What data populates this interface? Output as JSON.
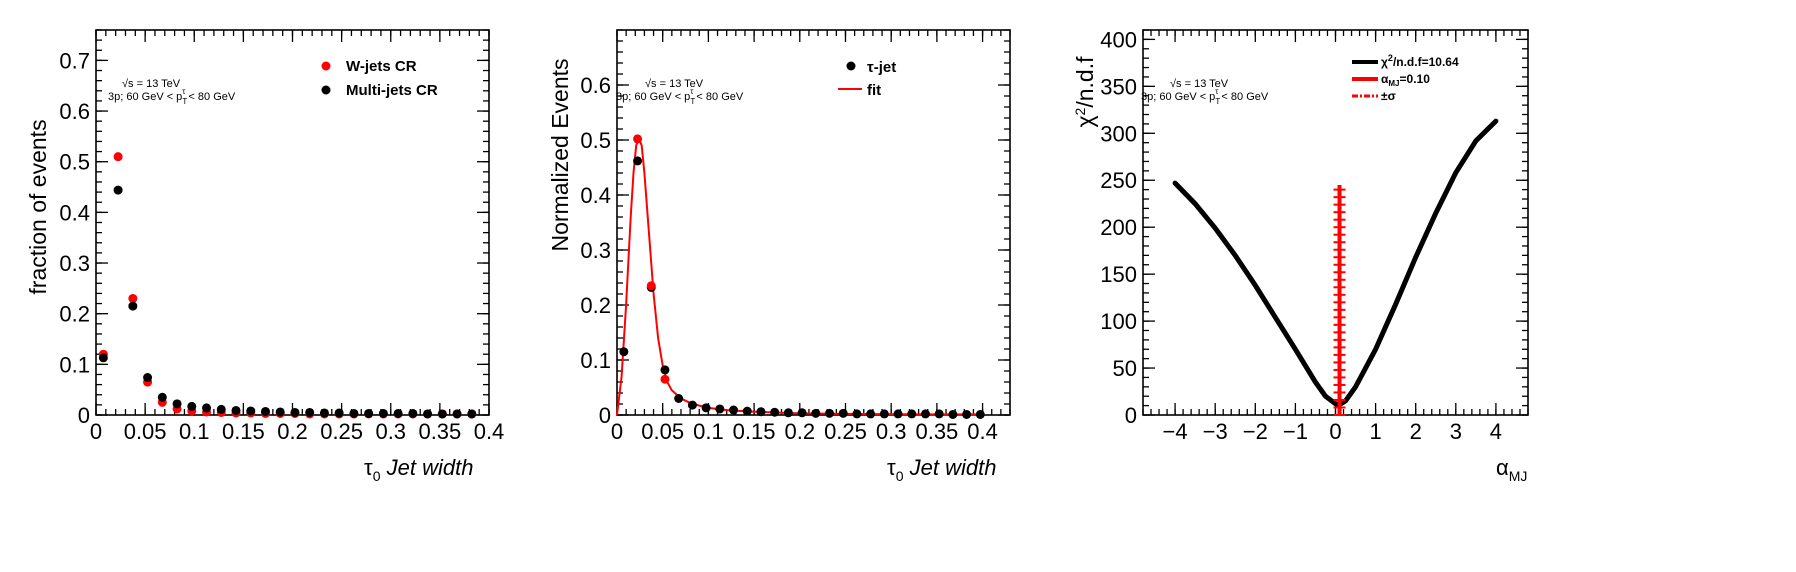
{
  "chart_data": [
    {
      "type": "scatter",
      "ylabel": "fraction of events",
      "xlabel_symbol": "τ",
      "xlabel_sub": "0",
      "xlabel_text": "Jet width",
      "xlim": [
        0,
        0.4
      ],
      "ylim": [
        0,
        0.76
      ],
      "x_ticks": [
        "0",
        "0.05",
        "0.1",
        "0.15",
        "0.2",
        "0.25",
        "0.3",
        "0.35",
        "0.4"
      ],
      "y_ticks": [
        "0",
        "0.1",
        "0.2",
        "0.3",
        "0.4",
        "0.5",
        "0.6",
        "0.7"
      ],
      "annotation_line1": "√s = 13 TeV",
      "annotation_line2": "3p; 60 GeV < p",
      "annotation_pt_sub": "T",
      "annotation_pt_sup": "τ",
      "annotation_line2_tail": " < 80 GeV",
      "series": [
        {
          "name": "W-jets CR",
          "color": "#ff0000",
          "x": [
            0.0075,
            0.0225,
            0.0375,
            0.0525,
            0.0675,
            0.0825,
            0.0975,
            0.1125,
            0.1275,
            0.1425,
            0.1575,
            0.1725,
            0.1875,
            0.2025,
            0.2175,
            0.2325,
            0.2475,
            0.2625,
            0.2775,
            0.2925,
            0.3075,
            0.3225,
            0.3375,
            0.3525,
            0.3675,
            0.3825
          ],
          "values": [
            0.12,
            0.51,
            0.23,
            0.065,
            0.025,
            0.012,
            0.008,
            0.006,
            0.005,
            0.004,
            0.004,
            0.003,
            0.003,
            0.003,
            0.002,
            0.002,
            0.002,
            0.002,
            0.002,
            0.002,
            0.002,
            0.002,
            0.002,
            0.002,
            0.002,
            0.002
          ]
        },
        {
          "name": "Multi-jets CR",
          "color": "#000000",
          "x": [
            0.0075,
            0.0225,
            0.0375,
            0.0525,
            0.0675,
            0.0825,
            0.0975,
            0.1125,
            0.1275,
            0.1425,
            0.1575,
            0.1725,
            0.1875,
            0.2025,
            0.2175,
            0.2325,
            0.2475,
            0.2625,
            0.2775,
            0.2925,
            0.3075,
            0.3225,
            0.3375,
            0.3525,
            0.3675,
            0.3825
          ],
          "values": [
            0.113,
            0.444,
            0.215,
            0.074,
            0.035,
            0.022,
            0.017,
            0.014,
            0.011,
            0.009,
            0.008,
            0.007,
            0.006,
            0.005,
            0.005,
            0.004,
            0.004,
            0.003,
            0.003,
            0.003,
            0.003,
            0.003,
            0.002,
            0.002,
            0.002,
            0.002
          ]
        }
      ]
    },
    {
      "type": "scatter",
      "ylabel": "Normalized Events",
      "xlabel_symbol": "τ",
      "xlabel_sub": "0",
      "xlabel_text": "Jet width",
      "xlim": [
        0,
        0.43
      ],
      "ylim": [
        0,
        0.7
      ],
      "x_ticks": [
        "0",
        "0.05",
        "0.1",
        "0.15",
        "0.2",
        "0.25",
        "0.3",
        "0.35",
        "0.4"
      ],
      "y_ticks": [
        "0",
        "0.1",
        "0.2",
        "0.3",
        "0.4",
        "0.5",
        "0.6"
      ],
      "annotation_line1": "√s = 13 TeV",
      "annotation_line2": "3p; 60 GeV < p",
      "annotation_pt_sub": "T",
      "annotation_pt_sup": "τ",
      "annotation_line2_tail": " < 80 GeV",
      "series": [
        {
          "name": "τ-jet",
          "color": "#000000",
          "x": [
            0.0075,
            0.0225,
            0.0375,
            0.0525,
            0.0675,
            0.0825,
            0.0975,
            0.1125,
            0.1275,
            0.1425,
            0.1575,
            0.1725,
            0.1875,
            0.2025,
            0.2175,
            0.2325,
            0.2475,
            0.2625,
            0.2775,
            0.2925,
            0.3075,
            0.3225,
            0.3375,
            0.3525,
            0.3675,
            0.3825,
            0.3975
          ],
          "values": [
            0.115,
            0.462,
            0.232,
            0.082,
            0.03,
            0.018,
            0.013,
            0.011,
            0.009,
            0.007,
            0.006,
            0.005,
            0.004,
            0.004,
            0.003,
            0.003,
            0.003,
            0.002,
            0.002,
            0.002,
            0.002,
            0.002,
            0.002,
            0.002,
            0.001,
            0.001,
            0.001
          ]
        },
        {
          "name": "fit",
          "color": "#ff0000",
          "points_x": [
            0.0225,
            0.0375,
            0.0525
          ],
          "points_y": [
            0.502,
            0.235,
            0.065
          ],
          "curve_x": [
            0.0,
            0.005,
            0.01,
            0.015,
            0.018,
            0.021,
            0.024,
            0.027,
            0.03,
            0.035,
            0.04,
            0.045,
            0.05,
            0.055,
            0.06,
            0.07,
            0.08,
            0.09,
            0.1,
            0.12,
            0.15,
            0.18,
            0.2,
            0.25,
            0.3,
            0.35,
            0.4
          ],
          "curve_y": [
            0.0,
            0.07,
            0.2,
            0.36,
            0.44,
            0.49,
            0.503,
            0.49,
            0.44,
            0.33,
            0.22,
            0.14,
            0.09,
            0.06,
            0.045,
            0.03,
            0.022,
            0.017,
            0.013,
            0.009,
            0.006,
            0.004,
            0.003,
            0.002,
            0.0015,
            0.001,
            0.001
          ]
        }
      ]
    },
    {
      "type": "line",
      "ylabel_symbol": "χ",
      "ylabel_sup": "2",
      "ylabel_text": "/n.d.f",
      "xlabel_symbol": "α",
      "xlabel_sub": "MJ",
      "xlim": [
        -4.8,
        4.8
      ],
      "ylim": [
        0,
        410
      ],
      "x_ticks": [
        "−4",
        "−3",
        "−2",
        "−1",
        "0",
        "1",
        "2",
        "3",
        "4"
      ],
      "x_tick_values": [
        -4,
        -3,
        -2,
        -1,
        0,
        1,
        2,
        3,
        4
      ],
      "y_ticks": [
        "0",
        "50",
        "100",
        "150",
        "200",
        "250",
        "300",
        "350",
        "400"
      ],
      "annotation_line1": "√s = 13 TeV",
      "annotation_line2": "3p; 60 GeV < p",
      "annotation_pt_sub": "T",
      "annotation_pt_sup": "τ",
      "annotation_line2_tail": " < 80 GeV",
      "legend": [
        {
          "label_a": "χ",
          "label_sup": "2",
          "label_b": "/n.d.f=10.64",
          "color": "#000000",
          "style": "solid"
        },
        {
          "label_a": "α",
          "label_sub": "MJ",
          "label_b": "=0.10",
          "color": "#ff0000",
          "style": "solid"
        },
        {
          "label_a": "±σ",
          "color": "#ff0000",
          "style": "dashdot"
        }
      ],
      "series": [
        {
          "name": "χ2/n.d.f",
          "color": "#000000",
          "x": [
            -4.0,
            -3.5,
            -3.0,
            -2.5,
            -2.0,
            -1.5,
            -1.0,
            -0.5,
            -0.25,
            0.0,
            0.1,
            0.25,
            0.5,
            1.0,
            1.5,
            2.0,
            2.5,
            3.0,
            3.5,
            4.0
          ],
          "values": [
            247,
            225,
            199,
            170,
            138,
            104,
            70,
            35,
            20,
            12,
            11,
            15,
            30,
            70,
            118,
            168,
            215,
            258,
            292,
            313
          ]
        }
      ],
      "best_fit": {
        "x": 0.1,
        "y_top": 245
      }
    }
  ]
}
